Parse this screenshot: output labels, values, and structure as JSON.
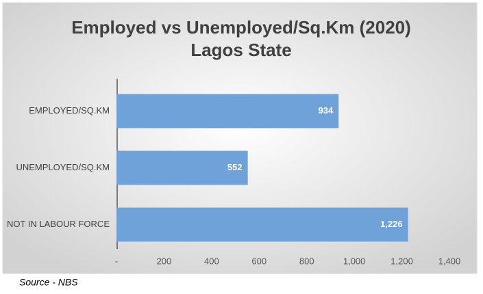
{
  "chart_data": {
    "type": "barh",
    "title": "Employed vs Unemployed/Sq.Km (2020)",
    "subtitle": "Lagos State",
    "categories": [
      "EMPLOYED/SQ.KM",
      "UNEMPLOYED/SQ.KM",
      "NOT IN LABOUR FORCE"
    ],
    "values": [
      934,
      552,
      1226
    ],
    "value_labels": [
      "934",
      "552",
      "1,226"
    ],
    "color": "#6fa2d8",
    "xlim": [
      0,
      1400
    ],
    "xticks": [
      {
        "value": 0,
        "label": "-"
      },
      200,
      400,
      600,
      800,
      {
        "value": 1000,
        "label": "1,000"
      },
      {
        "value": 1200,
        "label": "1,200"
      },
      {
        "value": 1400,
        "label": "1,400"
      }
    ],
    "grid": false,
    "source": "Source - NBS"
  }
}
